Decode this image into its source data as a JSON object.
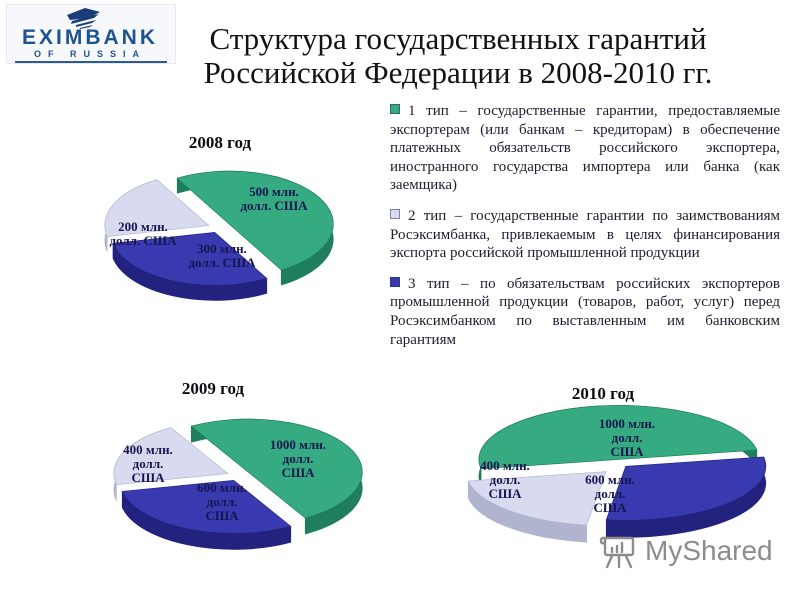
{
  "slide": {
    "logo": {
      "brand": "EXIMBANK",
      "sub": "OF RUSSIA"
    },
    "title_line1": "Структура государственных гарантий",
    "title_line2": "Российской Федерации в 2008-2010 гг.",
    "bullets": [
      {
        "marker_color": "#36ab82",
        "text": "1 тип – государственные гарантии, предоставляемые экспортерам (или банкам – кредиторам) в обеспечение платежных обязательств российского экспортера, иностранного государства импортера или банка (как заемщика)"
      },
      {
        "marker_color": "#d8dbf0",
        "text": "2 тип – государственные гарантии по заимствованиям Росэксимбанка, привлекаемым в целях финансирования экспорта российской промышленной продукции"
      },
      {
        "marker_color": "#3939b0",
        "text": "3 тип – по обязательствам российских экспортеров промышленной продукции (товаров, работ, услуг) перед Росэксимбанком по выставленным им банковским гарантиям"
      }
    ],
    "watermark": "MyShared"
  },
  "colors": {
    "green": "#36ab82",
    "blue": "#3939b0",
    "lavender": "#d8dbf0",
    "label_text": "#16164e"
  },
  "chart_data": [
    {
      "type": "pie",
      "title": "2008 год",
      "unit": "млн. долл. США",
      "total": 1000,
      "legend_position": "inside",
      "slices": [
        {
          "value": 500,
          "label": "500 млн.\nдолл. США",
          "color": "#36ab82"
        },
        {
          "value": 300,
          "label": "300 млн.\nдолл. США",
          "color": "#3939b0"
        },
        {
          "value": 200,
          "label": "200 млн.\nдолл. США",
          "color": "#d8dbf0"
        }
      ]
    },
    {
      "type": "pie",
      "title": "2009 год",
      "unit": "млн. долл. США",
      "total": 2000,
      "legend_position": "inside",
      "slices": [
        {
          "value": 1000,
          "label": "1000 млн.\nдолл.\nСША",
          "color": "#36ab82"
        },
        {
          "value": 600,
          "label": "600 млн.\nдолл.\nСША",
          "color": "#3939b0"
        },
        {
          "value": 400,
          "label": "400 млн.\nдолл.\nСША",
          "color": "#d8dbf0"
        }
      ]
    },
    {
      "type": "pie",
      "title": "2010 год",
      "unit": "млн. долл. США",
      "total": 2000,
      "legend_position": "inside",
      "slices": [
        {
          "value": 1000,
          "label": "1000 млн.\nдолл.\nСША",
          "color": "#36ab82"
        },
        {
          "value": 600,
          "label": "600 млн.\nдолл.\nСША",
          "color": "#3939b0"
        },
        {
          "value": 400,
          "label": "400 млн.\nдолл.\nСША",
          "color": "#d8dbf0"
        }
      ]
    }
  ]
}
